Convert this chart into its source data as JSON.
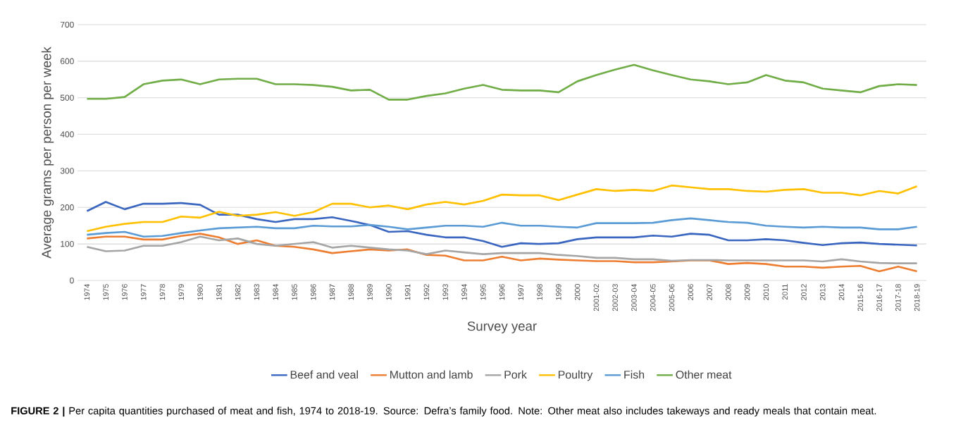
{
  "chart_data": {
    "type": "line",
    "xlabel": "Survey year",
    "ylabel": "Average grams  per person per week",
    "categories": [
      "1974",
      "1975",
      "1976",
      "1977",
      "1978",
      "1979",
      "1980",
      "1981",
      "1982",
      "1983",
      "1984",
      "1985",
      "1986",
      "1987",
      "1988",
      "1989",
      "1990",
      "1991",
      "1992",
      "1993",
      "1994",
      "1995",
      "1996",
      "1997",
      "1998",
      "1999",
      "2000",
      "2001-02",
      "2002-03",
      "2003-04",
      "2004-05",
      "2005-06",
      "2006",
      "2007",
      "2008",
      "2009",
      "2010",
      "2011",
      "2012",
      "2013",
      "2014",
      "2015-16",
      "2016-17",
      "2017-18",
      "2018-19"
    ],
    "series": [
      {
        "name": "Beef and veal",
        "color": "#3a66c0",
        "values": [
          190,
          215,
          195,
          210,
          210,
          212,
          207,
          180,
          180,
          168,
          160,
          168,
          168,
          173,
          163,
          152,
          133,
          135,
          125,
          118,
          118,
          108,
          92,
          102,
          100,
          102,
          113,
          118,
          118,
          118,
          123,
          120,
          128,
          125,
          110,
          110,
          113,
          110,
          103,
          97,
          102,
          104,
          100,
          98,
          96
        ]
      },
      {
        "name": "Mutton and lamb",
        "color": "#ed7d31",
        "values": [
          115,
          120,
          120,
          112,
          112,
          122,
          128,
          118,
          100,
          110,
          95,
          92,
          85,
          75,
          80,
          85,
          82,
          85,
          70,
          68,
          55,
          55,
          65,
          55,
          60,
          57,
          55,
          53,
          53,
          50,
          50,
          52,
          55,
          55,
          45,
          48,
          45,
          38,
          38,
          35,
          38,
          40,
          25,
          38,
          25
        ]
      },
      {
        "name": "Pork",
        "color": "#a5a5a5",
        "values": [
          92,
          80,
          82,
          95,
          95,
          105,
          120,
          110,
          115,
          100,
          95,
          100,
          105,
          90,
          95,
          90,
          85,
          82,
          72,
          82,
          77,
          72,
          75,
          75,
          75,
          70,
          67,
          62,
          62,
          58,
          58,
          54,
          56,
          56,
          55,
          55,
          55,
          55,
          55,
          52,
          58,
          52,
          48,
          47,
          47
        ]
      },
      {
        "name": "Poultry",
        "color": "#ffc000",
        "values": [
          135,
          147,
          155,
          160,
          160,
          175,
          172,
          188,
          177,
          180,
          187,
          177,
          187,
          210,
          210,
          200,
          205,
          195,
          208,
          215,
          208,
          218,
          235,
          233,
          233,
          220,
          235,
          250,
          245,
          248,
          245,
          260,
          255,
          250,
          250,
          245,
          243,
          248,
          250,
          240,
          240,
          233,
          245,
          238,
          258
        ]
      },
      {
        "name": "Fish",
        "color": "#5b9bd5",
        "values": [
          125,
          130,
          133,
          120,
          122,
          130,
          137,
          143,
          145,
          147,
          143,
          143,
          150,
          148,
          148,
          152,
          147,
          140,
          145,
          150,
          150,
          147,
          158,
          150,
          150,
          147,
          145,
          157,
          157,
          157,
          158,
          165,
          170,
          165,
          160,
          158,
          150,
          147,
          145,
          147,
          145,
          145,
          140,
          140,
          147
        ]
      },
      {
        "name": "Other meat",
        "color": "#70ad47",
        "values": [
          497,
          497,
          502,
          537,
          547,
          550,
          537,
          550,
          552,
          552,
          537,
          537,
          535,
          530,
          520,
          522,
          495,
          495,
          505,
          512,
          525,
          535,
          522,
          520,
          520,
          515,
          545,
          562,
          577,
          590,
          575,
          562,
          550,
          545,
          537,
          542,
          562,
          547,
          542,
          525,
          520,
          515,
          532,
          537,
          535
        ]
      }
    ],
    "ylim": [
      0,
      700
    ],
    "yticks": [
      0,
      100,
      200,
      300,
      400,
      500,
      600,
      700
    ],
    "grid": "y",
    "legend": "bottom",
    "marker": "none",
    "line_style": "solid",
    "annotations": [
      "**FIGURE 2 |** Per capita quantities purchased of meat and fish, 1974 to 2018-19. Source: Defra’s family food. Note: Other meat also includes takeways and ready meals that contain meat."
    ]
  }
}
